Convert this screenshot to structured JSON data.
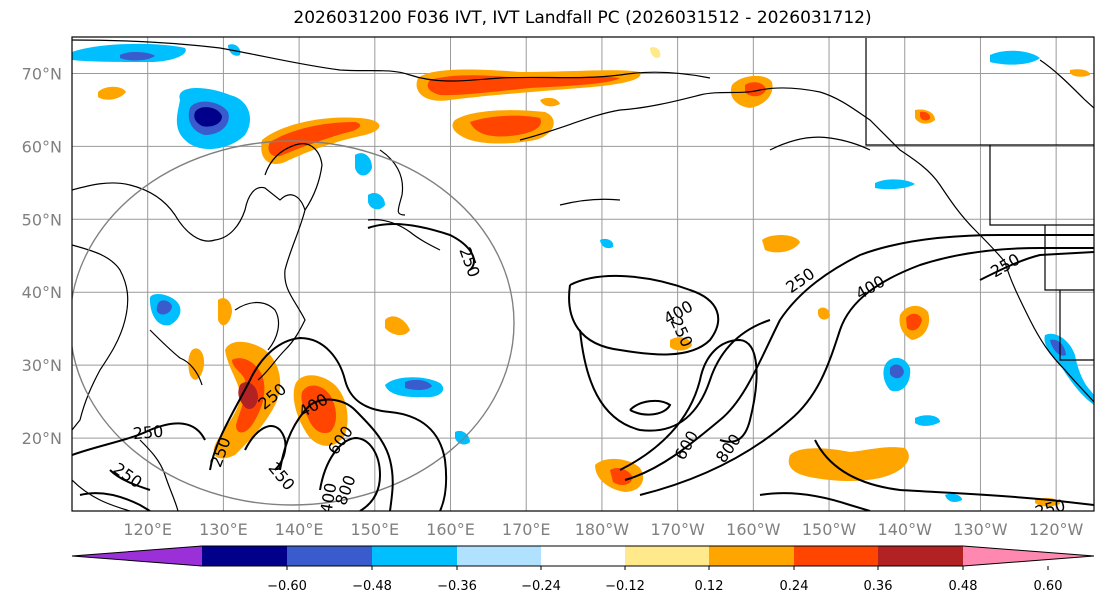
{
  "title": "2026031200 F036 IVT, IVT Landfall PC (2026031512 - 2026031712)",
  "map": {
    "lon_range": [
      110,
      -115
    ],
    "lat_range": [
      10,
      75
    ],
    "lat_ticks": [
      "70°N",
      "60°N",
      "50°N",
      "40°N",
      "30°N",
      "20°N"
    ],
    "lon_ticks": [
      "120°E",
      "130°E",
      "140°E",
      "150°E",
      "160°E",
      "170°E",
      "180°W",
      "170°W",
      "160°W",
      "150°W",
      "140°W",
      "130°W",
      "120°W"
    ],
    "gridlines": true
  },
  "contours": {
    "levels": [
      250,
      400,
      600,
      800
    ],
    "labels": [
      "250",
      "250",
      "250",
      "250",
      "250",
      "400",
      "600",
      "800",
      "400",
      "250",
      "600",
      "800",
      "250",
      "400",
      "250",
      "400",
      "250",
      "250"
    ]
  },
  "colorbar": {
    "ticks": [
      "−0.60",
      "−0.48",
      "−0.36",
      "−0.24",
      "−0.12",
      "0.12",
      "0.24",
      "0.36",
      "0.48",
      "0.60"
    ],
    "colors": [
      "#9b30d9",
      "#00008b",
      "#3a5bcc",
      "#00bfff",
      "#b0e2ff",
      "#ffffff",
      "#ffe98a",
      "#ffa500",
      "#ff4500",
      "#b22222",
      "#ff88b0"
    ]
  }
}
